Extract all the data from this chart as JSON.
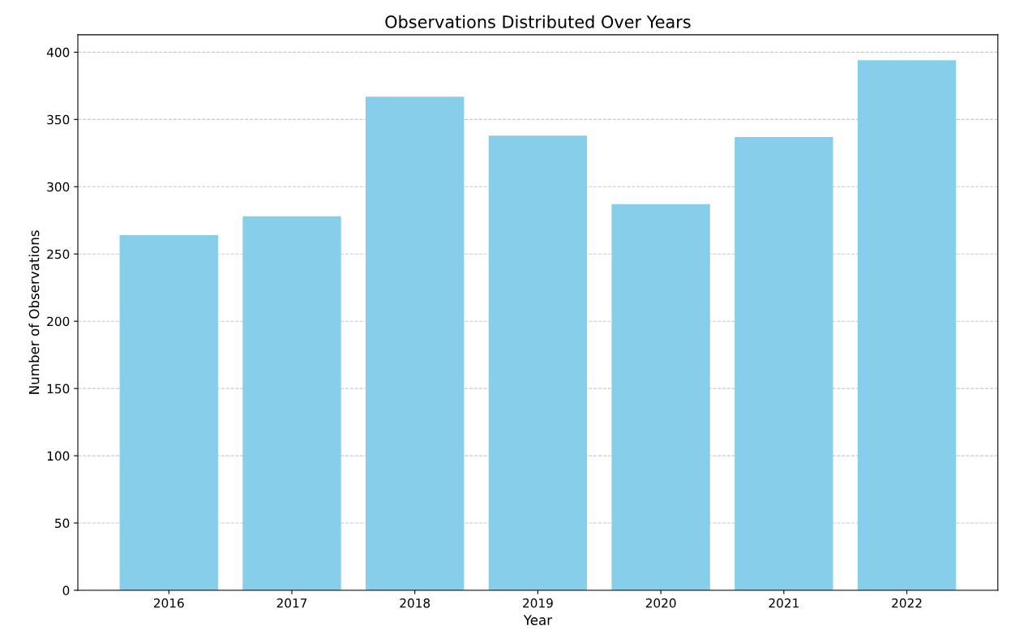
{
  "chart_data": {
    "type": "bar",
    "title": "Observations Distributed Over Years",
    "xlabel": "Year",
    "ylabel": "Number of Observations",
    "categories": [
      "2016",
      "2017",
      "2018",
      "2019",
      "2020",
      "2021",
      "2022"
    ],
    "values": [
      264,
      278,
      367,
      338,
      287,
      337,
      394
    ],
    "color": "#87ceeb",
    "ylim": [
      0,
      413
    ],
    "yticks": [
      0,
      50,
      100,
      150,
      200,
      250,
      300,
      350,
      400
    ],
    "grid": "y",
    "line_style": "dashed"
  }
}
